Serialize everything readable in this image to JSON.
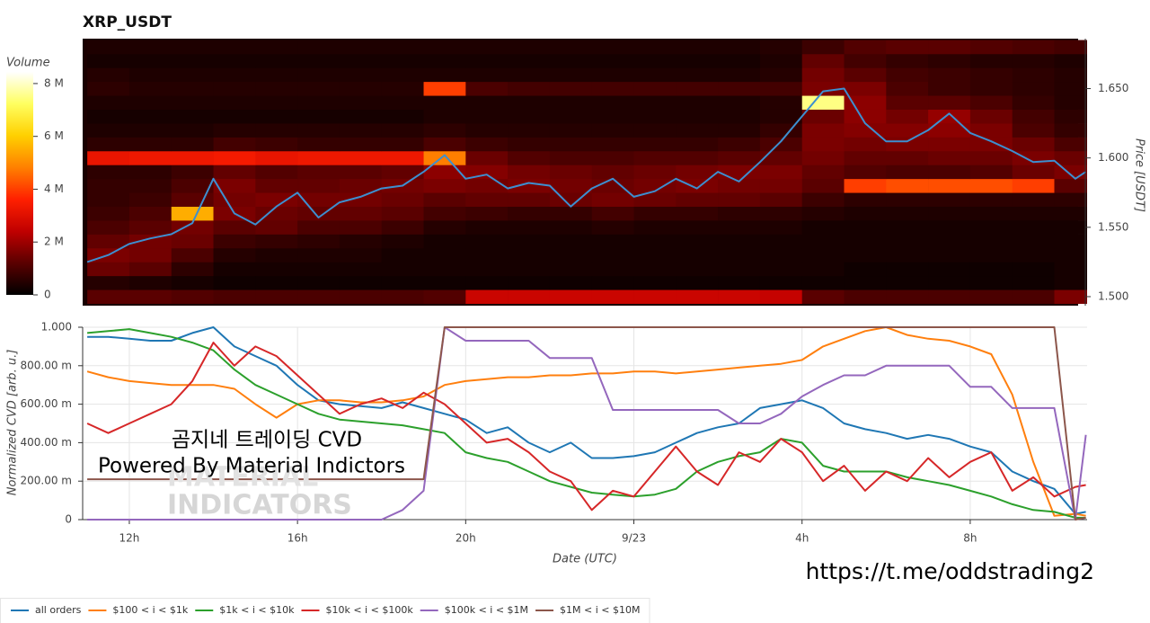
{
  "chart_data": [
    {
      "type": "heatmap",
      "title": "XRP_USDT",
      "ylabel": "Price [USDT]",
      "colorbar_title": "Volume",
      "xlim": [
        10.89,
        34.78
      ],
      "ylim": [
        1.4935,
        1.686
      ],
      "yticks": [
        {
          "value": 1.5,
          "label": "1.500"
        },
        {
          "value": 1.55,
          "label": "1.550"
        },
        {
          "value": 1.6,
          "label": "1.600"
        },
        {
          "value": 1.65,
          "label": "1.650"
        }
      ],
      "zlim": [
        0,
        8.44
      ],
      "zticks": [
        0,
        {
          "value": 2,
          "label": "2 M"
        },
        {
          "value": 4,
          "label": "4 M"
        },
        {
          "value": 6,
          "label": "6 M"
        },
        {
          "value": 8,
          "label": "8 M"
        }
      ],
      "colorscale": [
        "#000000",
        "#5a0000",
        "#c00000",
        "#ff2000",
        "#ff8000",
        "#ffd000",
        "#ffff60",
        "#ffffff"
      ],
      "x_bins": [
        11,
        12,
        13,
        14,
        15,
        16,
        17,
        18,
        19,
        20,
        21,
        22,
        23,
        24,
        25,
        26,
        27,
        28,
        29,
        30,
        31,
        32,
        33,
        34,
        35
      ],
      "y_bins": [
        1.495,
        1.505,
        1.515,
        1.525,
        1.535,
        1.545,
        1.555,
        1.565,
        1.575,
        1.585,
        1.595,
        1.605,
        1.615,
        1.625,
        1.635,
        1.645,
        1.655,
        1.665,
        1.675,
        1.685
      ],
      "values": [
        [
          1.2,
          1.2,
          1.1,
          1.0,
          1.0,
          1.0,
          1.0,
          1.0,
          1.1,
          2.6,
          2.6,
          2.6,
          2.6,
          2.6,
          2.6,
          2.6,
          2.5,
          1.2,
          1.0,
          1.0,
          1.0,
          1.0,
          1.0,
          1.6
        ],
        [
          0.5,
          0.4,
          0.3,
          0.2,
          0.2,
          0.2,
          0.2,
          0.2,
          0.2,
          0.2,
          0.2,
          0.2,
          0.2,
          0.2,
          0.2,
          0.2,
          0.2,
          0.2,
          0.2,
          0.2,
          0.2,
          0.2,
          0.2,
          0.3
        ],
        [
          1.4,
          1.2,
          0.6,
          0.3,
          0.3,
          0.3,
          0.3,
          0.3,
          0.3,
          0.3,
          0.3,
          0.3,
          0.3,
          0.3,
          0.3,
          0.3,
          0.3,
          0.3,
          0.2,
          0.2,
          0.2,
          0.2,
          0.2,
          0.3
        ],
        [
          1.6,
          1.5,
          1.0,
          0.5,
          0.4,
          0.4,
          0.4,
          0.3,
          0.3,
          0.3,
          0.3,
          0.3,
          0.3,
          0.3,
          0.3,
          0.3,
          0.3,
          0.3,
          0.3,
          0.3,
          0.3,
          0.3,
          0.3,
          0.3
        ],
        [
          1.3,
          1.5,
          1.4,
          0.8,
          0.7,
          0.6,
          0.5,
          0.4,
          0.3,
          0.3,
          0.3,
          0.3,
          0.3,
          0.3,
          0.3,
          0.3,
          0.3,
          0.3,
          0.3,
          0.3,
          0.3,
          0.3,
          0.3,
          0.3
        ],
        [
          1.0,
          1.2,
          1.5,
          1.2,
          1.3,
          1.0,
          1.0,
          0.8,
          0.5,
          0.4,
          0.4,
          0.4,
          0.5,
          0.4,
          0.4,
          0.4,
          0.4,
          0.3,
          0.3,
          0.3,
          0.3,
          0.3,
          0.3,
          0.3
        ],
        [
          0.8,
          1.0,
          5.5,
          1.6,
          1.4,
          1.3,
          1.3,
          1.2,
          0.9,
          0.8,
          0.7,
          0.7,
          0.9,
          0.7,
          0.7,
          0.6,
          0.6,
          0.5,
          0.4,
          0.4,
          0.4,
          0.4,
          0.4,
          0.4
        ],
        [
          0.7,
          0.8,
          1.2,
          1.5,
          1.6,
          1.5,
          1.5,
          1.4,
          1.2,
          1.3,
          1.3,
          1.4,
          1.5,
          1.4,
          1.3,
          1.3,
          1.2,
          0.8,
          0.6,
          0.6,
          0.6,
          0.6,
          0.6,
          0.6
        ],
        [
          0.7,
          0.7,
          1.0,
          1.6,
          1.3,
          1.3,
          1.4,
          1.5,
          1.6,
          1.5,
          1.6,
          1.5,
          1.4,
          1.5,
          1.6,
          1.5,
          1.5,
          1.2,
          4.0,
          4.2,
          4.2,
          4.2,
          4.0,
          1.2
        ],
        [
          0.6,
          0.6,
          0.8,
          1.3,
          1.1,
          1.2,
          1.2,
          1.3,
          1.8,
          1.7,
          1.5,
          1.4,
          1.3,
          1.4,
          1.5,
          1.6,
          1.6,
          1.3,
          1.1,
          1.0,
          1.0,
          1.1,
          1.4,
          1.6
        ],
        [
          3.2,
          3.3,
          3.3,
          3.4,
          3.2,
          3.3,
          3.3,
          3.3,
          4.8,
          1.4,
          1.1,
          1.0,
          1.0,
          1.1,
          1.1,
          1.2,
          1.3,
          1.5,
          1.3,
          1.3,
          1.4,
          1.4,
          1.6,
          1.4
        ],
        [
          0.6,
          0.6,
          0.6,
          0.9,
          0.8,
          0.7,
          0.7,
          0.7,
          1.0,
          0.8,
          0.7,
          0.7,
          0.7,
          0.7,
          0.7,
          0.8,
          1.0,
          1.6,
          1.5,
          1.6,
          1.6,
          1.6,
          1.4,
          1.0
        ],
        [
          0.4,
          0.4,
          0.4,
          0.5,
          0.5,
          0.5,
          0.5,
          0.5,
          0.6,
          0.5,
          0.5,
          0.5,
          0.5,
          0.5,
          0.5,
          0.5,
          0.7,
          1.6,
          1.7,
          1.7,
          1.8,
          1.6,
          1.0,
          0.7
        ],
        [
          0.3,
          0.3,
          0.3,
          0.3,
          0.3,
          0.3,
          0.3,
          0.3,
          0.4,
          0.4,
          0.4,
          0.4,
          0.4,
          0.4,
          0.4,
          0.4,
          0.5,
          1.4,
          1.8,
          1.5,
          1.9,
          1.4,
          0.9,
          0.6
        ],
        [
          0.4,
          0.4,
          0.4,
          0.4,
          0.4,
          0.4,
          0.4,
          0.4,
          0.4,
          0.4,
          0.4,
          0.4,
          0.4,
          0.4,
          0.4,
          0.4,
          0.5,
          7.5,
          1.8,
          1.2,
          1.2,
          1.0,
          0.7,
          0.5
        ],
        [
          0.6,
          0.5,
          0.5,
          0.5,
          0.5,
          0.5,
          0.5,
          0.5,
          4.0,
          1.0,
          0.9,
          0.9,
          0.9,
          0.9,
          0.9,
          0.9,
          0.9,
          1.6,
          1.6,
          1.0,
          0.8,
          0.7,
          0.6,
          0.5
        ],
        [
          0.5,
          0.4,
          0.4,
          0.4,
          0.4,
          0.4,
          0.4,
          0.4,
          0.4,
          0.4,
          0.4,
          0.4,
          0.4,
          0.4,
          0.4,
          0.4,
          0.5,
          1.5,
          1.2,
          0.9,
          0.8,
          0.7,
          0.6,
          0.5
        ],
        [
          0.3,
          0.3,
          0.3,
          0.3,
          0.3,
          0.3,
          0.3,
          0.3,
          0.3,
          0.3,
          0.3,
          0.3,
          0.3,
          0.3,
          0.3,
          0.3,
          0.4,
          1.3,
          0.9,
          0.7,
          0.6,
          0.5,
          0.5,
          0.4
        ],
        [
          0.4,
          0.4,
          0.4,
          0.4,
          0.4,
          0.4,
          0.4,
          0.4,
          0.4,
          0.4,
          0.4,
          0.4,
          0.4,
          0.4,
          0.4,
          0.4,
          0.5,
          0.8,
          1.1,
          1.2,
          1.2,
          1.1,
          1.0,
          0.9
        ]
      ],
      "line": {
        "color": "#3d8fd0",
        "x": [
          11,
          11.5,
          12,
          12.5,
          13,
          13.5,
          14,
          14.5,
          15,
          15.5,
          16,
          16.5,
          17,
          17.5,
          18,
          18.5,
          19,
          19.5,
          20,
          20.5,
          21,
          21.5,
          22,
          22.5,
          23,
          23.5,
          24,
          24.5,
          25,
          25.5,
          26,
          26.5,
          27,
          27.5,
          28,
          28.5,
          29,
          29.5,
          30,
          30.5,
          31,
          31.5,
          32,
          32.5,
          33,
          33.5,
          34,
          34.5,
          34.75
        ],
        "values": [
          1.525,
          1.53,
          1.538,
          1.542,
          1.545,
          1.553,
          1.585,
          1.56,
          1.552,
          1.565,
          1.575,
          1.557,
          1.568,
          1.572,
          1.578,
          1.58,
          1.59,
          1.602,
          1.585,
          1.588,
          1.578,
          1.582,
          1.58,
          1.565,
          1.578,
          1.585,
          1.572,
          1.576,
          1.585,
          1.578,
          1.59,
          1.583,
          1.597,
          1.612,
          1.63,
          1.648,
          1.65,
          1.625,
          1.612,
          1.612,
          1.62,
          1.632,
          1.618,
          1.612,
          1.605,
          1.597,
          1.598,
          1.585,
          1.59
        ]
      }
    },
    {
      "type": "line",
      "xlabel": "Date (UTC)",
      "ylabel": "Normalized CVD [arb. u.]",
      "grid": true,
      "legend": "bottom-left",
      "xlim": [
        10.89,
        34.78
      ],
      "ylim": [
        0,
        1
      ],
      "xticks": [
        {
          "value": 12,
          "label": "12h"
        },
        {
          "value": 16,
          "label": "16h"
        },
        {
          "value": 20,
          "label": "20h"
        },
        {
          "value": 24,
          "label": "9/23"
        },
        {
          "value": 28,
          "label": "4h"
        },
        {
          "value": 32,
          "label": "8h"
        }
      ],
      "yticks": [
        0,
        {
          "value": 0.2,
          "label": "200.00 m"
        },
        {
          "value": 0.4,
          "label": "400.00 m"
        },
        {
          "value": 0.6,
          "label": "600.00 m"
        },
        {
          "value": 0.8,
          "label": "800.00 m"
        },
        {
          "value": 1,
          "label": "1.000"
        }
      ],
      "x": [
        11,
        11.5,
        12,
        12.5,
        13,
        13.5,
        14,
        14.5,
        15,
        15.5,
        16,
        16.5,
        17,
        17.5,
        18,
        18.5,
        19,
        19.5,
        20,
        20.5,
        21,
        21.5,
        22,
        22.5,
        23,
        23.5,
        24,
        24.5,
        25,
        25.5,
        26,
        26.5,
        27,
        27.5,
        28,
        28.5,
        29,
        29.5,
        30,
        30.5,
        31,
        31.5,
        32,
        32.5,
        33,
        33.5,
        34,
        34.5,
        34.75
      ],
      "series": [
        {
          "name": "all orders",
          "color": "#1f77b4",
          "values": [
            0.95,
            0.95,
            0.94,
            0.93,
            0.93,
            0.97,
            1.0,
            0.9,
            0.85,
            0.8,
            0.7,
            0.62,
            0.6,
            0.59,
            0.58,
            0.61,
            0.58,
            0.55,
            0.52,
            0.45,
            0.48,
            0.4,
            0.35,
            0.4,
            0.32,
            0.32,
            0.33,
            0.35,
            0.4,
            0.45,
            0.48,
            0.5,
            0.58,
            0.6,
            0.62,
            0.58,
            0.5,
            0.47,
            0.45,
            0.42,
            0.44,
            0.42,
            0.38,
            0.35,
            0.25,
            0.2,
            0.16,
            0.03,
            0.04
          ]
        },
        {
          "name": "$100 < i < $1k",
          "color": "#ff7f0e",
          "values": [
            0.77,
            0.74,
            0.72,
            0.71,
            0.7,
            0.7,
            0.7,
            0.68,
            0.6,
            0.53,
            0.6,
            0.62,
            0.62,
            0.61,
            0.61,
            0.62,
            0.64,
            0.7,
            0.72,
            0.73,
            0.74,
            0.74,
            0.75,
            0.75,
            0.76,
            0.76,
            0.77,
            0.77,
            0.76,
            0.77,
            0.78,
            0.79,
            0.8,
            0.81,
            0.83,
            0.9,
            0.94,
            0.98,
            1.0,
            0.96,
            0.94,
            0.93,
            0.9,
            0.86,
            0.65,
            0.3,
            0.02,
            0.03,
            0.02
          ]
        },
        {
          "name": "$1k < i < $10k",
          "color": "#2ca02c",
          "values": [
            0.97,
            0.98,
            0.99,
            0.97,
            0.95,
            0.92,
            0.88,
            0.78,
            0.7,
            0.65,
            0.6,
            0.55,
            0.52,
            0.51,
            0.5,
            0.49,
            0.47,
            0.45,
            0.35,
            0.32,
            0.3,
            0.25,
            0.2,
            0.17,
            0.14,
            0.13,
            0.12,
            0.13,
            0.16,
            0.25,
            0.3,
            0.33,
            0.35,
            0.42,
            0.4,
            0.28,
            0.25,
            0.25,
            0.25,
            0.22,
            0.2,
            0.18,
            0.15,
            0.12,
            0.08,
            0.05,
            0.04,
            0.01,
            0.01
          ]
        },
        {
          "name": "$10k < i < $100k",
          "color": "#d62728",
          "values": [
            0.5,
            0.45,
            0.5,
            0.55,
            0.6,
            0.72,
            0.92,
            0.8,
            0.9,
            0.85,
            0.75,
            0.65,
            0.55,
            0.6,
            0.63,
            0.58,
            0.66,
            0.6,
            0.5,
            0.4,
            0.42,
            0.35,
            0.25,
            0.2,
            0.05,
            0.15,
            0.12,
            0.25,
            0.38,
            0.25,
            0.18,
            0.35,
            0.3,
            0.42,
            0.35,
            0.2,
            0.28,
            0.15,
            0.25,
            0.2,
            0.32,
            0.22,
            0.3,
            0.35,
            0.15,
            0.22,
            0.12,
            0.17,
            0.18
          ]
        },
        {
          "name": "$100k < i < $1M",
          "color": "#9467bd",
          "values": [
            0,
            0,
            0,
            0,
            0,
            0,
            0,
            0,
            0,
            0,
            0,
            0,
            0,
            0,
            0,
            0.05,
            0.15,
            1.0,
            0.93,
            0.93,
            0.93,
            0.93,
            0.84,
            0.84,
            0.84,
            0.57,
            0.57,
            0.57,
            0.57,
            0.57,
            0.57,
            0.5,
            0.5,
            0.55,
            0.64,
            0.7,
            0.75,
            0.75,
            0.8,
            0.8,
            0.8,
            0.8,
            0.69,
            0.69,
            0.58,
            0.58,
            0.58,
            0.0,
            0.44
          ]
        },
        {
          "name": "$1M < i < $10M",
          "color": "#8c564b",
          "values": [
            0.21,
            0.21,
            0.21,
            0.21,
            0.21,
            0.21,
            0.21,
            0.21,
            0.21,
            0.21,
            0.21,
            0.21,
            0.21,
            0.21,
            0.21,
            0.21,
            0.21,
            1.0,
            1.0,
            1.0,
            1.0,
            1.0,
            1.0,
            1.0,
            1.0,
            1.0,
            1.0,
            1.0,
            1.0,
            1.0,
            1.0,
            1.0,
            1.0,
            1.0,
            1.0,
            1.0,
            1.0,
            1.0,
            1.0,
            1.0,
            1.0,
            1.0,
            1.0,
            1.0,
            1.0,
            1.0,
            1.0,
            0.0,
            0.01
          ]
        }
      ]
    }
  ],
  "watermark": {
    "title": "곰지네 트레이딩 CVD",
    "subtitle": "Powered By Material Indictors",
    "logo": [
      "MATERIAL",
      "INDICATORS"
    ]
  },
  "link": "https://t.me/oddstrading2"
}
